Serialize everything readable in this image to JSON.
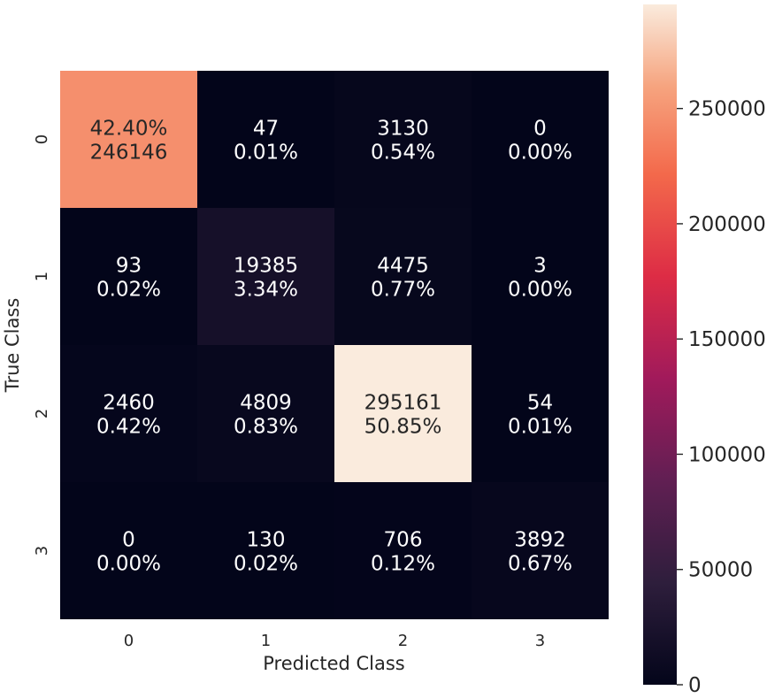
{
  "chart_data": {
    "type": "heatmap",
    "title": "",
    "xlabel": "Predicted Class",
    "ylabel": "True Class",
    "x_categories": [
      "0",
      "1",
      "2",
      "3"
    ],
    "y_categories": [
      "0",
      "1",
      "2",
      "3"
    ],
    "cells": [
      [
        {
          "value": 246146,
          "lines": [
            "42.40%",
            "246146"
          ]
        },
        {
          "value": 47,
          "lines": [
            "47",
            "0.01%"
          ]
        },
        {
          "value": 3130,
          "lines": [
            "3130",
            "0.54%"
          ]
        },
        {
          "value": 0,
          "lines": [
            "0",
            "0.00%"
          ]
        }
      ],
      [
        {
          "value": 93,
          "lines": [
            "93",
            "0.02%"
          ]
        },
        {
          "value": 19385,
          "lines": [
            "19385",
            "3.34%"
          ]
        },
        {
          "value": 4475,
          "lines": [
            "4475",
            "0.77%"
          ]
        },
        {
          "value": 3,
          "lines": [
            "3",
            "0.00%"
          ]
        }
      ],
      [
        {
          "value": 2460,
          "lines": [
            "2460",
            "0.42%"
          ]
        },
        {
          "value": 4809,
          "lines": [
            "4809",
            "0.83%"
          ]
        },
        {
          "value": 295161,
          "lines": [
            "295161",
            "50.85%"
          ]
        },
        {
          "value": 54,
          "lines": [
            "54",
            "0.01%"
          ]
        }
      ],
      [
        {
          "value": 0,
          "lines": [
            "0",
            "0.00%"
          ]
        },
        {
          "value": 130,
          "lines": [
            "130",
            "0.02%"
          ]
        },
        {
          "value": 706,
          "lines": [
            "706",
            "0.12%"
          ]
        },
        {
          "value": 3892,
          "lines": [
            "3892",
            "0.67%"
          ]
        }
      ]
    ],
    "colorbar": {
      "min": 0,
      "max": 295161,
      "ticks": [
        0,
        50000,
        100000,
        150000,
        200000,
        250000
      ],
      "tick_labels": [
        "0",
        "50000",
        "100000",
        "150000",
        "200000",
        "250000"
      ],
      "colormap": "rocket"
    }
  }
}
